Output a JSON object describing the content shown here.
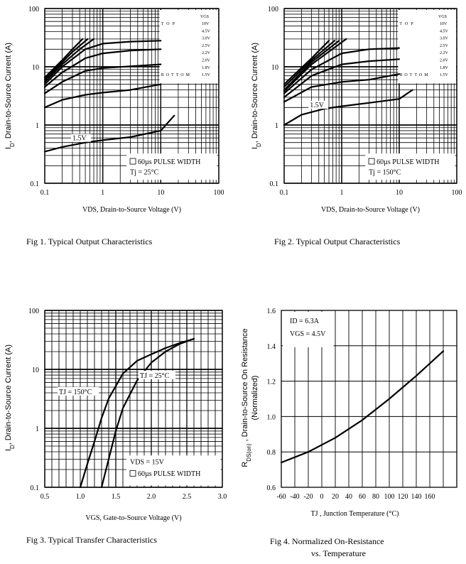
{
  "chart_data": [
    {
      "type": "line",
      "title": "Fig 1. Typical Output Characteristics",
      "xlabel": "VDS, Drain-to-Source Voltage (V)",
      "ylabel": "I_D, Drain-to-Source Current (A)",
      "xscale": "log",
      "yscale": "log",
      "xlim": [
        0.1,
        100
      ],
      "ylim": [
        0.1,
        100
      ],
      "x_ticks": [
        "0.1",
        "1",
        "10",
        "100"
      ],
      "y_ticks": [
        "0.1",
        "1",
        "10",
        "100"
      ],
      "legend": {
        "header": "VGS",
        "top_label": "TOP",
        "bottom_label": "BOTTOM",
        "entries": [
          "10V",
          "4.5V",
          "3.0V",
          "2.5V",
          "2.2V",
          "2.0V",
          "1.8V",
          "1.5V"
        ]
      },
      "annotations": [
        "60µs PULSE WIDTH",
        "Tj = 25°C"
      ],
      "curve_label": "1.5V",
      "series": [
        {
          "name": "10V",
          "x": [
            0.1,
            0.2,
            0.3,
            0.45
          ],
          "y": [
            6.5,
            13,
            20,
            30
          ]
        },
        {
          "name": "4.5V",
          "x": [
            0.1,
            0.2,
            0.3,
            0.55
          ],
          "y": [
            6,
            12,
            18,
            30
          ]
        },
        {
          "name": "3.0V",
          "x": [
            0.1,
            0.2,
            0.4,
            0.7
          ],
          "y": [
            5.5,
            11,
            20,
            30
          ]
        },
        {
          "name": "2.5V",
          "x": [
            0.1,
            0.2,
            0.5,
            1,
            3,
            10
          ],
          "y": [
            5,
            10,
            20,
            25,
            27,
            28
          ]
        },
        {
          "name": "2.2V",
          "x": [
            0.1,
            0.2,
            0.5,
            1,
            3,
            10
          ],
          "y": [
            4.5,
            8,
            14,
            17,
            19,
            20
          ]
        },
        {
          "name": "2.0V",
          "x": [
            0.1,
            0.2,
            0.5,
            1,
            3,
            10
          ],
          "y": [
            3.5,
            5.5,
            8.5,
            9.5,
            10.2,
            11
          ]
        },
        {
          "name": "1.8V",
          "x": [
            0.1,
            0.2,
            0.5,
            1,
            3,
            10
          ],
          "y": [
            2,
            2.7,
            3.3,
            3.6,
            4,
            5
          ]
        },
        {
          "name": "1.5V",
          "x": [
            0.1,
            0.2,
            0.5,
            1,
            3,
            10,
            17
          ],
          "y": [
            0.35,
            0.42,
            0.5,
            0.55,
            0.62,
            0.8,
            1.45
          ]
        }
      ]
    },
    {
      "type": "line",
      "title": "Fig 2. Typical Output Characteristics",
      "xlabel": "VDS, Drain-to-Source Voltage (V)",
      "ylabel": "I_D, Drain-to-Source Current (A)",
      "xscale": "log",
      "yscale": "log",
      "xlim": [
        0.1,
        100
      ],
      "ylim": [
        0.1,
        100
      ],
      "x_ticks": [
        "0.1",
        "1",
        "10",
        "100"
      ],
      "y_ticks": [
        "0.1",
        "1",
        "10",
        "100"
      ],
      "legend": {
        "header": "VGS",
        "top_label": "TOP",
        "bottom_label": "BOTTOM",
        "entries": [
          "10V",
          "4.5V",
          "3.0V",
          "2.5V",
          "2.2V",
          "2.0V",
          "1.8V",
          "1.5V"
        ]
      },
      "annotations": [
        "60µs PULSE WIDTH",
        "Tj = 150°C"
      ],
      "curve_label": "1.5V",
      "series": [
        {
          "name": "10V",
          "x": [
            0.1,
            0.3,
            0.6
          ],
          "y": [
            5,
            14,
            28
          ]
        },
        {
          "name": "4.5V",
          "x": [
            0.1,
            0.3,
            0.75
          ],
          "y": [
            4.5,
            13,
            28
          ]
        },
        {
          "name": "3.0V",
          "x": [
            0.1,
            0.3,
            0.9
          ],
          "y": [
            4,
            12,
            28
          ]
        },
        {
          "name": "2.5V",
          "x": [
            0.1,
            0.3,
            1.2
          ],
          "y": [
            3.8,
            11,
            30
          ]
        },
        {
          "name": "2.2V",
          "x": [
            0.1,
            0.3,
            1,
            3,
            10
          ],
          "y": [
            3.5,
            9,
            17,
            20,
            21
          ]
        },
        {
          "name": "2.0V",
          "x": [
            0.1,
            0.3,
            1,
            3,
            10
          ],
          "y": [
            3,
            7,
            11,
            12.5,
            13.5
          ]
        },
        {
          "name": "1.8V",
          "x": [
            0.1,
            0.3,
            1,
            3,
            10
          ],
          "y": [
            2.5,
            4.5,
            5.5,
            6,
            7.5
          ]
        },
        {
          "name": "1.5V",
          "x": [
            0.1,
            0.2,
            0.5,
            1,
            3,
            10,
            17
          ],
          "y": [
            1,
            1.5,
            1.9,
            2.1,
            2.4,
            2.8,
            4
          ]
        }
      ]
    },
    {
      "type": "line",
      "title": "Fig 3. Typical Transfer Characteristics",
      "xlabel": "VGS, Gate-to-Source Voltage (V)",
      "ylabel": "I_D, Drain-to-Source Current (A)",
      "xscale": "linear",
      "yscale": "log",
      "xlim": [
        0.5,
        3.0
      ],
      "ylim": [
        0.1,
        100
      ],
      "x_ticks": [
        "0.5",
        "1.0",
        "1.5",
        "2.0",
        "2.5",
        "3.0"
      ],
      "y_ticks": [
        "0.1",
        "1",
        "10",
        "100"
      ],
      "annotations": [
        "VDS = 15V",
        "60µs PULSE WIDTH"
      ],
      "series": [
        {
          "name": "TJ = 150°C",
          "x": [
            1.0,
            1.1,
            1.2,
            1.3,
            1.4,
            1.6,
            1.8,
            2.0,
            2.2,
            2.4,
            2.6
          ],
          "y": [
            0.1,
            0.25,
            0.6,
            1.5,
            3.2,
            8.5,
            14,
            18,
            23,
            28,
            33
          ]
        },
        {
          "name": "TJ = 25°C",
          "x": [
            1.3,
            1.4,
            1.5,
            1.6,
            1.8,
            2.0,
            2.2,
            2.4,
            2.6
          ],
          "y": [
            0.1,
            0.3,
            0.9,
            2.2,
            6.5,
            13,
            20,
            27,
            33
          ]
        }
      ]
    },
    {
      "type": "line",
      "title": "Fig 4. Normalized On-Resistance vs. Temperature",
      "xlabel": "TJ , Junction Temperature (°C)",
      "ylabel": "R_DS(on) , Drain-to-Source On Resistance (Normalized)",
      "xscale": "linear",
      "yscale": "linear",
      "xlim": [
        -60,
        200
      ],
      "ylim": [
        0.6,
        1.6
      ],
      "x_ticks": [
        "-60",
        "-40",
        "-20",
        "0",
        "20",
        "40",
        "60",
        "80",
        "100",
        "120",
        "140",
        "160"
      ],
      "y_ticks": [
        "0.6",
        "0.8",
        "1.0",
        "1.2",
        "1.4",
        "1.6"
      ],
      "annotations": [
        "ID = 6.3A",
        "VGS = 4.5V"
      ],
      "series": [
        {
          "x": [
            -60,
            -20,
            20,
            60,
            100,
            140,
            180
          ],
          "y": [
            0.74,
            0.8,
            0.88,
            0.98,
            1.1,
            1.23,
            1.37
          ]
        }
      ]
    }
  ]
}
